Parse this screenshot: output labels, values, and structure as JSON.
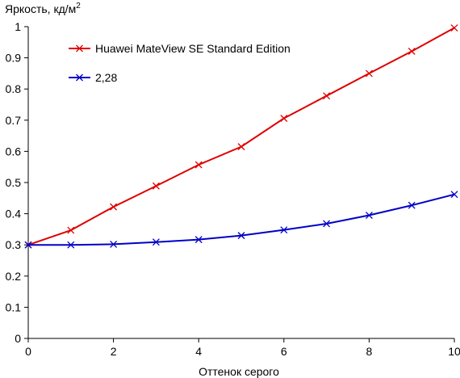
{
  "chart_data": {
    "type": "line",
    "ylabel": "Яркость, кд/м",
    "ylabel_sup": "2",
    "xlabel": "Оттенок серого",
    "xlim": [
      0,
      10
    ],
    "ylim": [
      0,
      1
    ],
    "xticks": [
      "0",
      "2",
      "4",
      "6",
      "8",
      "10"
    ],
    "yticks": [
      "0",
      "0.1",
      "0.2",
      "0.3",
      "0.4",
      "0.5",
      "0.6",
      "0.7",
      "0.8",
      "0.9",
      "1"
    ],
    "grid": false,
    "legend_position": "top-left",
    "x": [
      0,
      1,
      2,
      3,
      4,
      5,
      6,
      7,
      8,
      9,
      10
    ],
    "series": [
      {
        "name": "Huawei MateView SE Standard Edition",
        "color": "#e00000",
        "marker": "x",
        "values": [
          0.3,
          0.347,
          0.422,
          0.489,
          0.557,
          0.615,
          0.706,
          0.778,
          0.85,
          0.921,
          0.996
        ]
      },
      {
        "name": "2,28",
        "color": "#0000c8",
        "marker": "x",
        "values": [
          0.3,
          0.3,
          0.302,
          0.309,
          0.317,
          0.33,
          0.348,
          0.368,
          0.395,
          0.427,
          0.462
        ]
      }
    ]
  }
}
